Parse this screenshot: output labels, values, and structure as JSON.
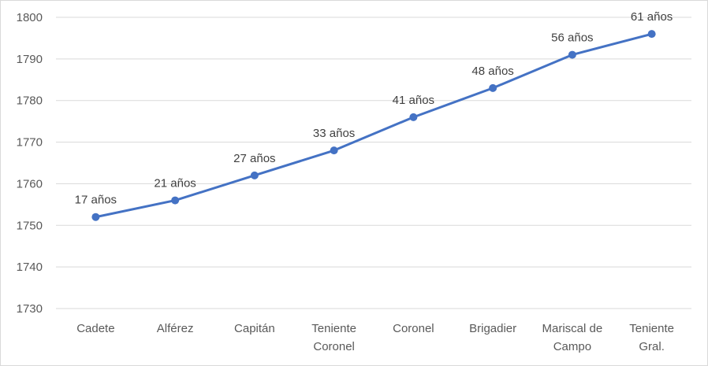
{
  "chart_data": {
    "type": "line",
    "title": "",
    "xlabel": "",
    "ylabel": "",
    "categories": [
      "Cadete",
      "Alférez",
      "Capitán",
      "Teniente Coronel",
      "Coronel",
      "Brigadier",
      "Mariscal de Campo",
      "Teniente Gral."
    ],
    "category_lines": [
      [
        "Cadete"
      ],
      [
        "Alférez"
      ],
      [
        "Capitán"
      ],
      [
        "Teniente",
        "Coronel"
      ],
      [
        "Coronel"
      ],
      [
        "Brigadier"
      ],
      [
        "Mariscal de",
        "Campo"
      ],
      [
        "Teniente",
        "Gral."
      ]
    ],
    "series": [
      {
        "values": [
          1752,
          1756,
          1762,
          1768,
          1776,
          1783,
          1791,
          1796
        ],
        "data_labels": [
          "17 años",
          "21 años",
          "27 años",
          "33 años",
          "41 años",
          "48 años",
          "56 años",
          "61 años"
        ],
        "color": "#4472c4"
      }
    ],
    "ylim": [
      1730,
      1800
    ],
    "yticks": [
      1730,
      1740,
      1750,
      1760,
      1770,
      1780,
      1790,
      1800
    ],
    "grid": true,
    "legend": "none"
  }
}
